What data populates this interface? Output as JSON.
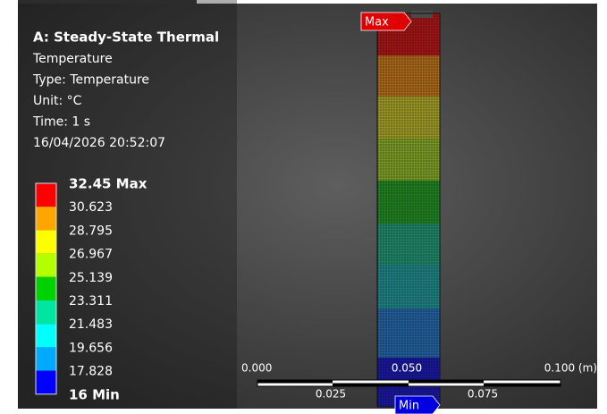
{
  "header": {
    "title": "A: Steady-State Thermal",
    "lines": [
      "Temperature",
      "Type: Temperature",
      "Unit: °C",
      "Time: 1 s",
      "16/04/2026 20:52:07"
    ]
  },
  "legend": {
    "labels": [
      "32.45 Max",
      "30.623",
      "28.795",
      "26.967",
      "25.139",
      "23.311",
      "21.483",
      "19.656",
      "17.828",
      "16 Min"
    ],
    "colors": [
      "#ff0000",
      "#ffa500",
      "#ffff00",
      "#b4ff00",
      "#00d200",
      "#00e6a0",
      "#00ffff",
      "#00aaff",
      "#0000ff"
    ]
  },
  "scale": {
    "top": [
      "0.000",
      "0.050",
      "0.100 (m)"
    ],
    "bottom": [
      "0.025",
      "0.075"
    ]
  },
  "tags": {
    "max": "Max",
    "min": "Min"
  }
}
